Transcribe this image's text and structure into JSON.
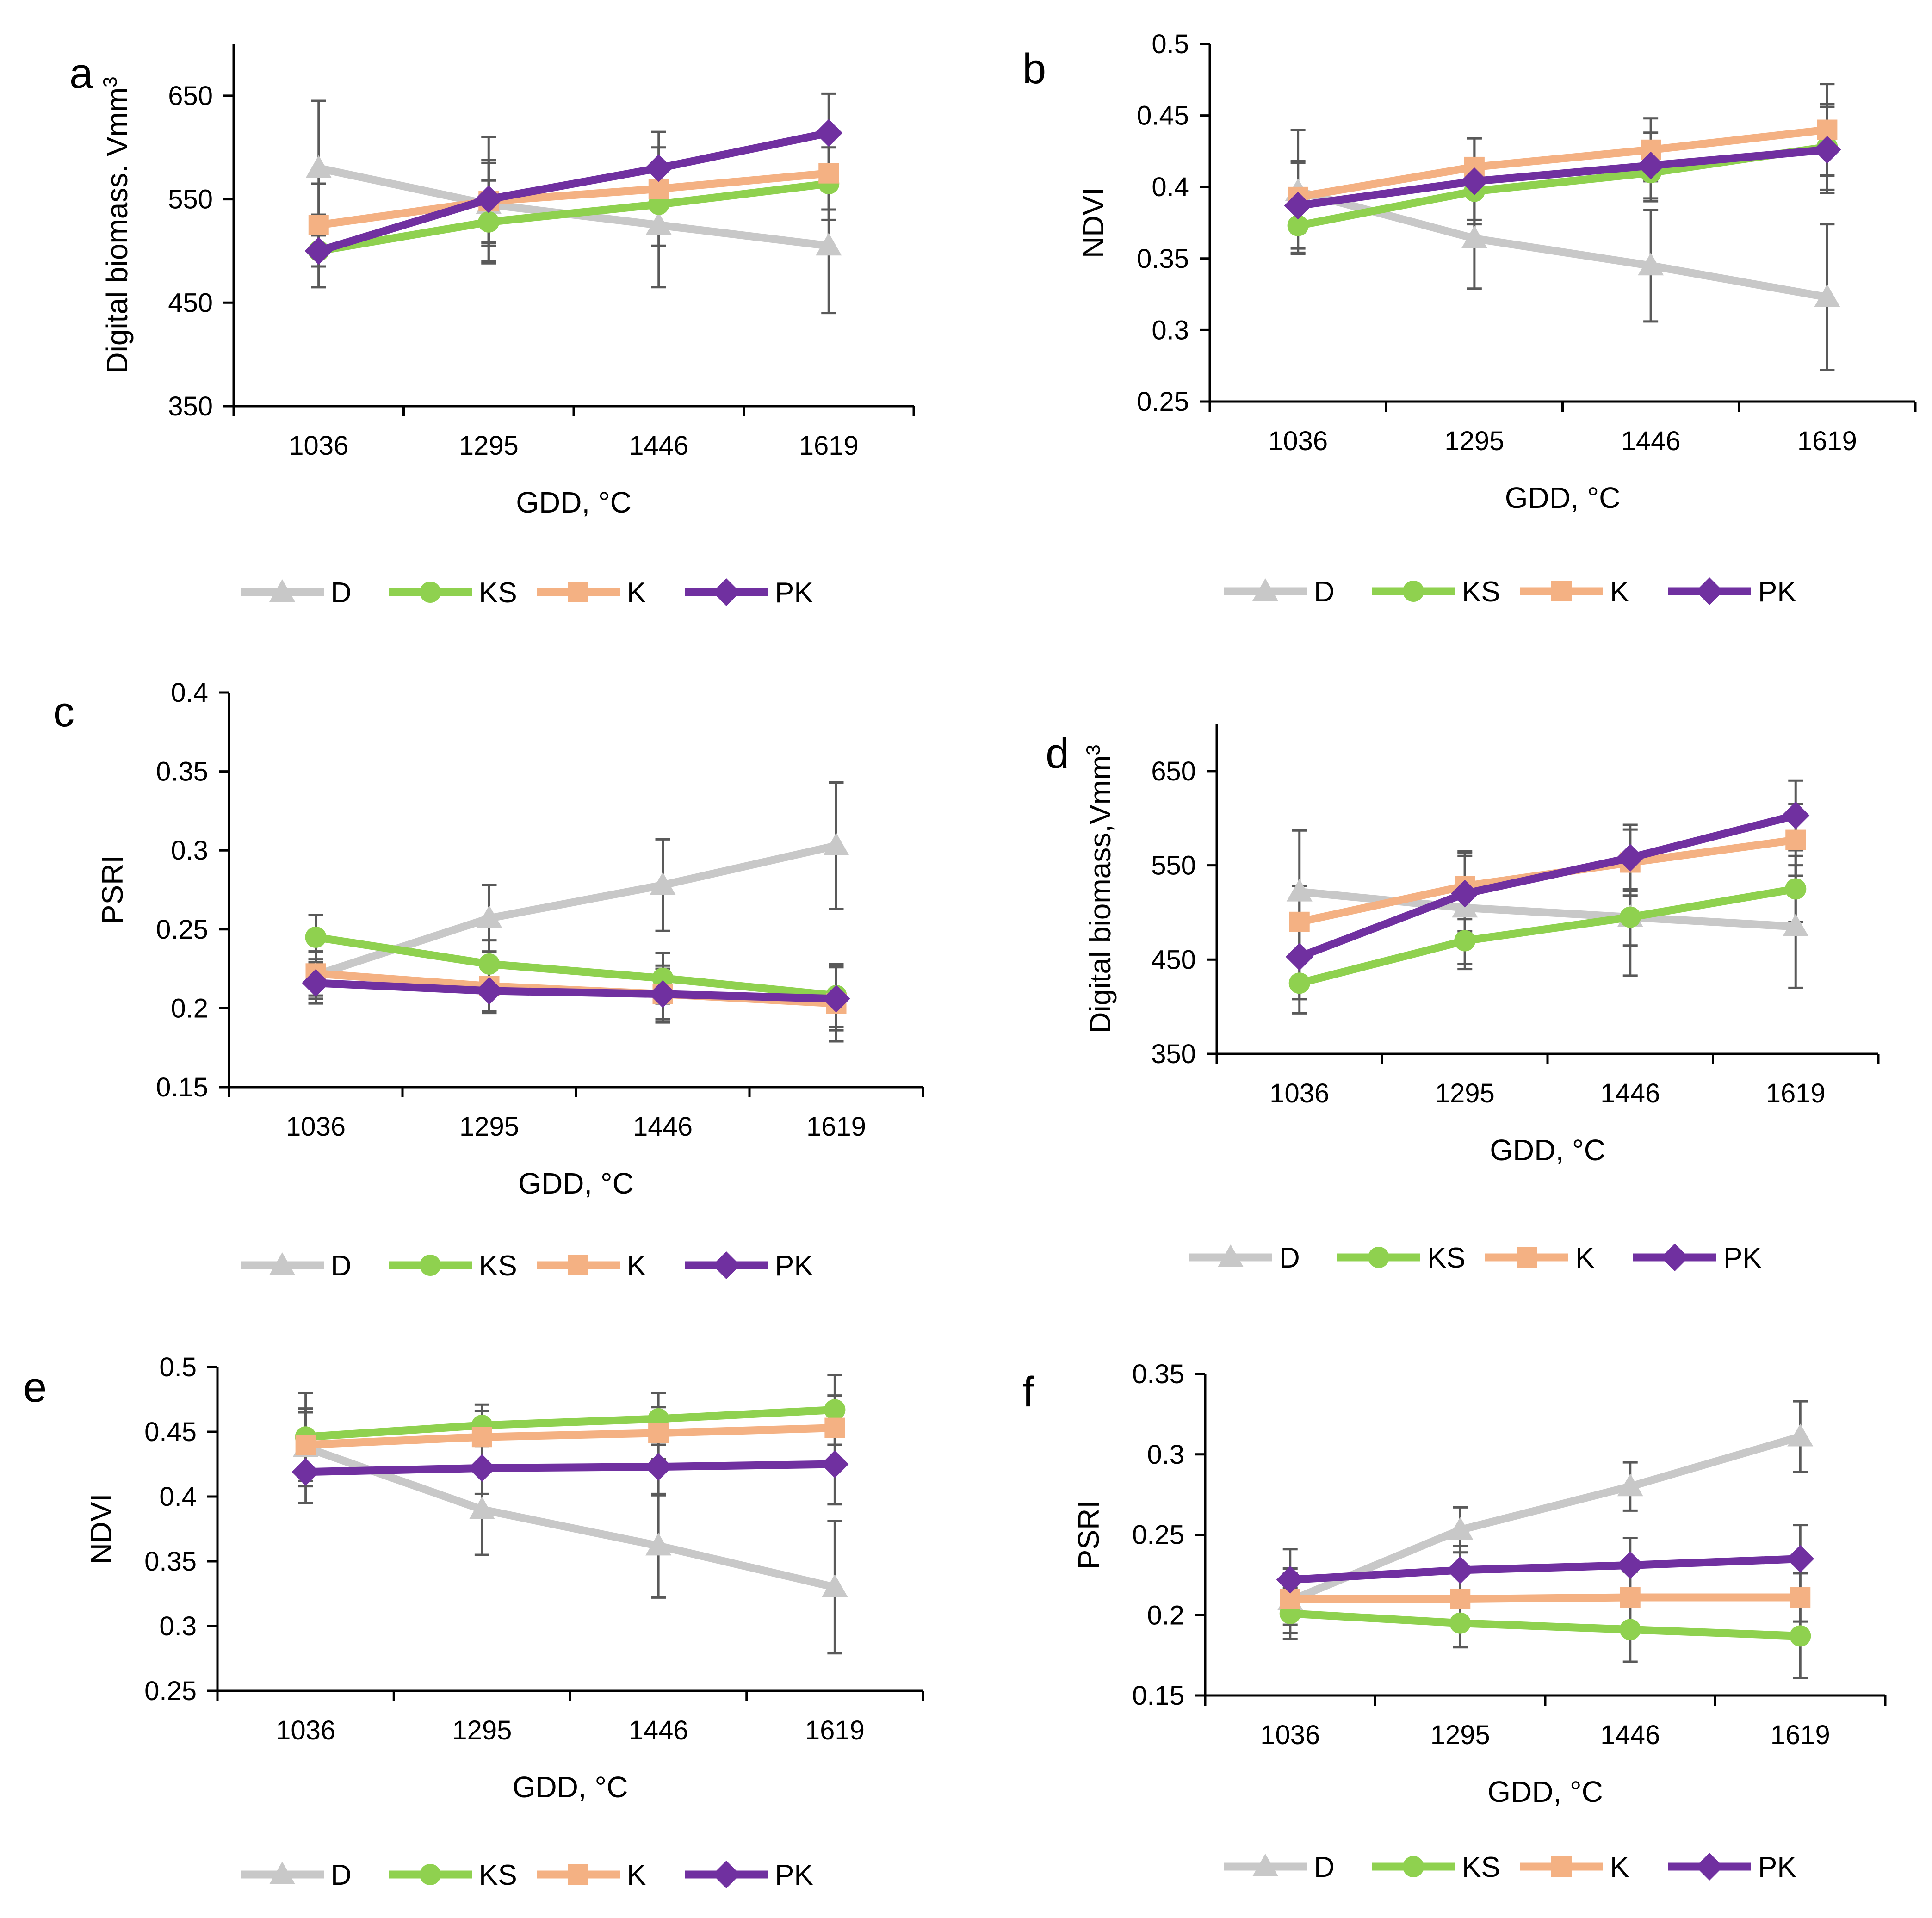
{
  "colors": {
    "D": "#c8c8c8",
    "KS": "#8fd14f",
    "K": "#f4b183",
    "PK": "#7030a0",
    "error_bar": "#595959",
    "axis": "#000000"
  },
  "chart_data": [
    {
      "panel": "a",
      "type": "line",
      "categories": [
        "1036",
        "1295",
        "1446",
        "1619"
      ],
      "xlabel": "GDD, °C",
      "ylabel": "Digital biomass. Vmm³",
      "ylim": [
        350,
        700
      ],
      "yticks": [
        350,
        450,
        550,
        650
      ],
      "ytick_labels": [
        "350",
        "450",
        "550",
        "650"
      ],
      "legend": [
        "D",
        "KS",
        "K",
        "PK"
      ],
      "series": [
        {
          "name": "D",
          "marker": "triangle",
          "values": [
            580,
            545,
            525,
            505
          ],
          "errors": [
            65,
            40,
            60,
            65
          ]
        },
        {
          "name": "KS",
          "marker": "circle",
          "values": [
            500,
            528,
            545,
            565
          ],
          "errors": [
            35,
            40,
            40,
            35
          ]
        },
        {
          "name": "K",
          "marker": "square",
          "values": [
            525,
            548,
            560,
            575
          ],
          "errors": [
            40,
            40,
            40,
            35
          ]
        },
        {
          "name": "PK",
          "marker": "diamond",
          "values": [
            500,
            550,
            580,
            614
          ],
          "errors": [
            35,
            60,
            35,
            38
          ]
        }
      ]
    },
    {
      "panel": "b",
      "type": "line",
      "categories": [
        "1036",
        "1295",
        "1446",
        "1619"
      ],
      "xlabel": "GDD, °C",
      "ylabel": "NDVI",
      "ylim": [
        0.25,
        0.5
      ],
      "yticks": [
        0.25,
        0.3,
        0.35,
        0.4,
        0.45,
        0.5
      ],
      "ytick_labels": [
        "0.25",
        "0.3",
        "0.35",
        "0.4",
        "0.45",
        "0.5"
      ],
      "legend": [
        "D",
        "KS",
        "K",
        "PK"
      ],
      "series": [
        {
          "name": "D",
          "marker": "triangle",
          "values": [
            0.397,
            0.364,
            0.345,
            0.323
          ],
          "errors": [
            0.043,
            0.035,
            0.039,
            0.051
          ]
        },
        {
          "name": "KS",
          "marker": "circle",
          "values": [
            0.373,
            0.397,
            0.41,
            0.428
          ],
          "errors": [
            0.02,
            0.02,
            0.02,
            0.03
          ]
        },
        {
          "name": "K",
          "marker": "square",
          "values": [
            0.393,
            0.414,
            0.426,
            0.44
          ],
          "errors": [
            0.025,
            0.02,
            0.022,
            0.032
          ]
        },
        {
          "name": "PK",
          "marker": "diamond",
          "values": [
            0.387,
            0.404,
            0.415,
            0.426
          ],
          "errors": [
            0.03,
            0.03,
            0.023,
            0.03
          ]
        }
      ]
    },
    {
      "panel": "c",
      "type": "line",
      "categories": [
        "1036",
        "1295",
        "1446",
        "1619"
      ],
      "xlabel": "GDD, °C",
      "ylabel": "PSRI",
      "ylim": [
        0.15,
        0.4
      ],
      "yticks": [
        0.15,
        0.2,
        0.25,
        0.3,
        0.35,
        0.4
      ],
      "ytick_labels": [
        "0.15",
        "0.2",
        "0.25",
        "0.3",
        "0.35",
        "0.4"
      ],
      "legend": [
        "D",
        "KS",
        "K",
        "PK"
      ],
      "series": [
        {
          "name": "D",
          "marker": "triangle",
          "values": [
            0.221,
            0.257,
            0.278,
            0.303
          ],
          "errors": [
            0.015,
            0.021,
            0.029,
            0.04
          ]
        },
        {
          "name": "KS",
          "marker": "circle",
          "values": [
            0.245,
            0.228,
            0.219,
            0.208
          ],
          "errors": [
            0.014,
            0.015,
            0.016,
            0.02
          ]
        },
        {
          "name": "K",
          "marker": "square",
          "values": [
            0.222,
            0.214,
            0.209,
            0.203
          ],
          "errors": [
            0.014,
            0.016,
            0.018,
            0.024
          ]
        },
        {
          "name": "PK",
          "marker": "diamond",
          "values": [
            0.216,
            0.211,
            0.209,
            0.206
          ],
          "errors": [
            0.013,
            0.014,
            0.016,
            0.02
          ]
        }
      ]
    },
    {
      "panel": "d",
      "type": "line",
      "categories": [
        "1036",
        "1295",
        "1446",
        "1619"
      ],
      "xlabel": "GDD, °C",
      "ylabel": "Digital biomass,Vmm³",
      "ylim": [
        350,
        700
      ],
      "yticks": [
        350,
        450,
        550,
        650
      ],
      "ytick_labels": [
        "350",
        "450",
        "550",
        "650"
      ],
      "legend": [
        "D",
        "KS",
        "K",
        "PK"
      ],
      "series": [
        {
          "name": "D",
          "marker": "triangle",
          "values": [
            522,
            505,
            495,
            485
          ],
          "errors": [
            65,
            60,
            62,
            65
          ]
        },
        {
          "name": "KS",
          "marker": "circle",
          "values": [
            425,
            470,
            495,
            525
          ],
          "errors": [
            32,
            30,
            30,
            35
          ]
        },
        {
          "name": "K",
          "marker": "square",
          "values": [
            490,
            528,
            553,
            577
          ],
          "errors": [
            38,
            35,
            35,
            38
          ]
        },
        {
          "name": "PK",
          "marker": "diamond",
          "values": [
            453,
            520,
            558,
            603
          ],
          "errors": [
            45,
            40,
            35,
            37
          ]
        }
      ]
    },
    {
      "panel": "e",
      "type": "line",
      "categories": [
        "1036",
        "1295",
        "1446",
        "1619"
      ],
      "xlabel": "GDD, °C",
      "ylabel": "NDVI",
      "ylim": [
        0.25,
        0.5
      ],
      "yticks": [
        0.25,
        0.3,
        0.35,
        0.4,
        0.45,
        0.5
      ],
      "ytick_labels": [
        "0.25",
        "0.3",
        "0.35",
        "0.4",
        "0.45",
        "0.5"
      ],
      "legend": [
        "D",
        "KS",
        "K",
        "PK"
      ],
      "series": [
        {
          "name": "D",
          "marker": "triangle",
          "values": [
            0.438,
            0.39,
            0.362,
            0.33
          ],
          "errors": [
            0.03,
            0.035,
            0.04,
            0.051
          ]
        },
        {
          "name": "KS",
          "marker": "circle",
          "values": [
            0.446,
            0.455,
            0.46,
            0.467
          ],
          "errors": [
            0.034,
            0.016,
            0.02,
            0.027
          ]
        },
        {
          "name": "K",
          "marker": "square",
          "values": [
            0.44,
            0.446,
            0.449,
            0.453
          ],
          "errors": [
            0.025,
            0.02,
            0.02,
            0.025
          ]
        },
        {
          "name": "PK",
          "marker": "diamond",
          "values": [
            0.419,
            0.422,
            0.423,
            0.425
          ],
          "errors": [
            0.024,
            0.02,
            0.022,
            0.031
          ]
        }
      ]
    },
    {
      "panel": "f",
      "type": "line",
      "categories": [
        "1036",
        "1295",
        "1446",
        "1619"
      ],
      "xlabel": "GDD, °C",
      "ylabel": "PSRI",
      "ylim": [
        0.15,
        0.35
      ],
      "yticks": [
        0.15,
        0.2,
        0.25,
        0.3,
        0.35
      ],
      "ytick_labels": [
        "0.15",
        "0.2",
        "0.25",
        "0.3",
        "0.35"
      ],
      "legend": [
        "D",
        "KS",
        "K",
        "PK"
      ],
      "series": [
        {
          "name": "D",
          "marker": "triangle",
          "values": [
            0.209,
            0.253,
            0.28,
            0.311
          ],
          "errors": [
            0.02,
            0.014,
            0.015,
            0.022
          ]
        },
        {
          "name": "KS",
          "marker": "circle",
          "values": [
            0.201,
            0.195,
            0.191,
            0.187
          ],
          "errors": [
            0.016,
            0.015,
            0.02,
            0.026
          ]
        },
        {
          "name": "K",
          "marker": "square",
          "values": [
            0.21,
            0.21,
            0.211,
            0.211
          ],
          "errors": [
            0.016,
            0.015,
            0.016,
            0.015
          ]
        },
        {
          "name": "PK",
          "marker": "diamond",
          "values": [
            0.222,
            0.228,
            0.231,
            0.235
          ],
          "errors": [
            0.019,
            0.015,
            0.017,
            0.021
          ]
        }
      ]
    }
  ]
}
